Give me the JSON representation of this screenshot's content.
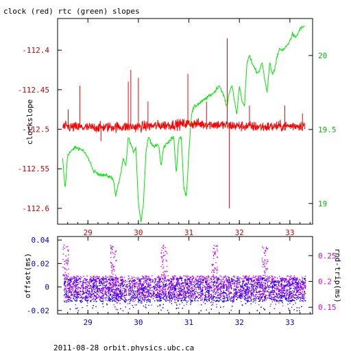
{
  "chart_data": [
    {
      "type": "line",
      "title": "clock (red) rtc (green) slopes",
      "ylabel_left": "clockslope",
      "xlim": [
        28.4,
        33.45
      ],
      "ylim_left": [
        -112.62,
        -112.36
      ],
      "ylim_right": [
        18.86,
        20.25
      ],
      "x_ticks": [
        29,
        30,
        31,
        32,
        33
      ],
      "y_ticks_left": [
        -112.4,
        -112.45,
        -112.5,
        -112.55,
        -112.6
      ],
      "y_ticks_right": [
        20,
        19.5,
        19
      ],
      "colors": {
        "clock": "#ff0000",
        "rtc": "#00e600",
        "left_axis": "#cc0000",
        "right_axis": "#00bb00"
      },
      "series": [
        {
          "axis": "left",
          "baseline": -112.495,
          "noise": 0.007,
          "x": [
            28.5,
            29.0,
            29.5,
            30.0,
            30.5,
            31.0,
            31.5,
            32.0,
            32.5,
            33.0,
            33.3
          ],
          "y": [
            -112.497,
            -112.498,
            -112.497,
            -112.497,
            -112.495,
            -112.493,
            -112.494,
            -112.496,
            -112.497,
            -112.496,
            -112.495
          ],
          "spikes": [
            [
              28.61,
              -112.475
            ],
            [
              28.84,
              -112.445
            ],
            [
              29.26,
              -112.515
            ],
            [
              29.8,
              -112.44
            ],
            [
              29.85,
              -112.425
            ],
            [
              30.0,
              -112.435
            ],
            [
              30.19,
              -112.465
            ],
            [
              30.98,
              -112.43
            ],
            [
              31.35,
              -112.465
            ],
            [
              31.76,
              -112.385
            ],
            [
              31.8,
              -112.6
            ],
            [
              32.2,
              -112.47
            ],
            [
              32.9,
              -112.47
            ],
            [
              33.25,
              -112.48
            ]
          ]
        },
        {
          "axis": "right",
          "x": [
            28.5,
            28.55,
            28.6,
            28.75,
            28.9,
            29.05,
            29.1,
            29.2,
            29.35,
            29.5,
            29.55,
            29.65,
            29.7,
            29.75,
            29.8,
            29.85,
            29.9,
            29.95,
            30.0,
            30.05,
            30.1,
            30.15,
            30.2,
            30.3,
            30.4,
            30.45,
            30.5,
            30.55,
            30.6,
            30.7,
            30.75,
            30.8,
            30.85,
            30.9,
            30.95,
            31.0,
            31.05,
            31.1,
            31.3,
            31.5,
            31.6,
            31.7,
            31.75,
            31.8,
            31.85,
            31.9,
            31.95,
            32.0,
            32.05,
            32.1,
            32.15,
            32.2,
            32.25,
            32.3,
            32.35,
            32.4,
            32.45,
            32.5,
            32.55,
            32.6,
            32.65,
            32.7,
            32.75,
            32.8,
            32.85,
            32.9,
            32.95,
            33.0,
            33.05,
            33.1,
            33.15,
            33.2,
            33.25,
            33.3
          ],
          "y": [
            19.3,
            19.1,
            19.33,
            19.38,
            19.36,
            19.28,
            19.22,
            19.2,
            19.19,
            19.17,
            19.05,
            19.2,
            19.3,
            19.25,
            19.45,
            19.4,
            19.35,
            19.38,
            19.0,
            18.88,
            19.0,
            19.35,
            19.45,
            19.38,
            19.4,
            19.25,
            19.38,
            19.4,
            19.42,
            19.45,
            19.2,
            19.44,
            19.45,
            19.1,
            19.05,
            19.35,
            19.6,
            19.65,
            19.7,
            19.75,
            19.8,
            19.72,
            19.65,
            19.75,
            19.8,
            19.7,
            19.6,
            19.8,
            19.7,
            19.65,
            19.95,
            20.0,
            19.95,
            19.92,
            19.88,
            19.9,
            19.95,
            19.85,
            19.75,
            19.95,
            19.88,
            19.9,
            20.0,
            20.05,
            20.03,
            20.05,
            20.07,
            20.1,
            20.15,
            20.12,
            20.14,
            20.18,
            20.19,
            20.2
          ]
        }
      ]
    },
    {
      "type": "scatter",
      "ylabel_left": "offset(ms)",
      "ylabel_right": "rnd-trip(ms)",
      "xlim": [
        28.4,
        33.45
      ],
      "ylim_left": [
        -0.023,
        0.043
      ],
      "ylim_right": [
        0.137,
        0.287
      ],
      "x_ticks": [
        29,
        30,
        31,
        32,
        33
      ],
      "y_ticks_left": [
        0.04,
        0.02,
        0,
        -0.02
      ],
      "y_ticks_right": [
        0.25,
        0.2,
        0.15
      ],
      "colors": {
        "offset": "#0000ff",
        "rndtrip": "#cc00ff",
        "left_axis": "#0000cc",
        "right_axis": "#dd00dd"
      },
      "offset_band": [
        -0.012,
        0.008
      ],
      "rndtrip_band": [
        0.168,
        0.212
      ],
      "bursts": [
        28.55,
        29.5,
        30.5,
        31.5,
        32.5
      ]
    }
  ],
  "footer": {
    "text": "2011-08-28  orbit.physics.ubc.ca"
  }
}
